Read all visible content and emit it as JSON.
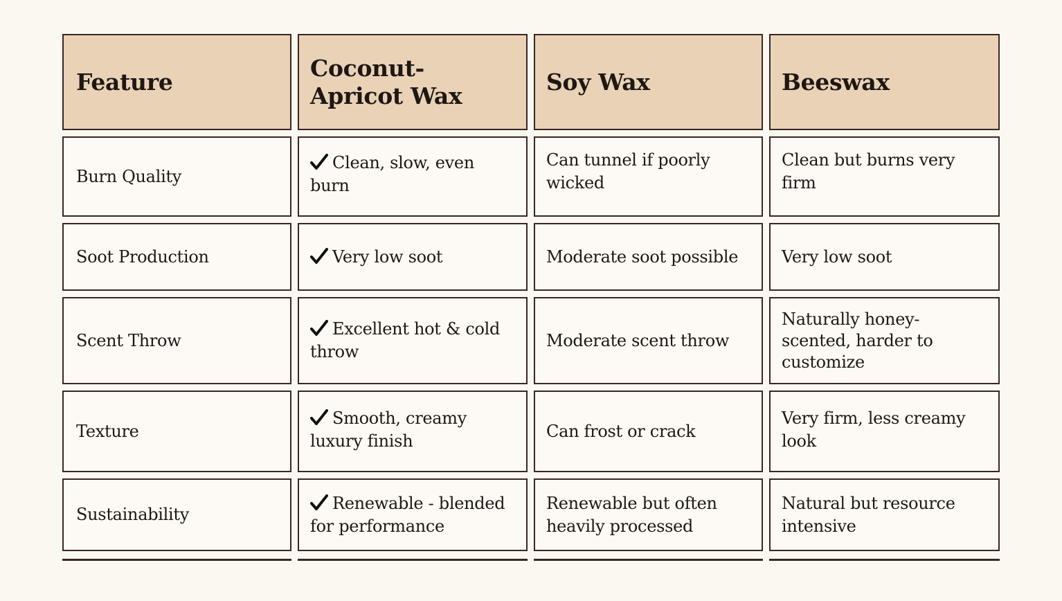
{
  "table": {
    "headers": [
      "Feature",
      "Coconut-Apricot Wax",
      "Soy Wax",
      "Beeswax"
    ],
    "rows": [
      {
        "feature": "Burn Quality",
        "coconut": "Clean, slow, even burn",
        "soy": "Can tunnel if poorly wicked",
        "beeswax": "Clean but burns very firm"
      },
      {
        "feature": "Soot Production",
        "coconut": "Very low soot",
        "soy": "Moderate soot possible",
        "beeswax": "Very low soot"
      },
      {
        "feature": "Scent Throw",
        "coconut": "Excellent hot & cold throw",
        "soy": "Moderate scent throw",
        "beeswax": "Naturally honey-scented, harder to customize"
      },
      {
        "feature": "Texture",
        "coconut": "Smooth, creamy luxury finish",
        "soy": "Can frost or crack",
        "beeswax": "Very firm, less creamy look"
      },
      {
        "feature": "Sustainability",
        "coconut": "Renewable - blended for performance",
        "soy": "Renewable but often heavily processed",
        "beeswax": "Natural but resource intensive"
      }
    ]
  },
  "icons": {
    "coconut_cells": "checkmark-icon"
  },
  "colors": {
    "header_bg": "#e9d2b6",
    "cell_bg": "#fdfaf5",
    "border": "#3a2620",
    "page_bg": "#fbf8f2"
  }
}
